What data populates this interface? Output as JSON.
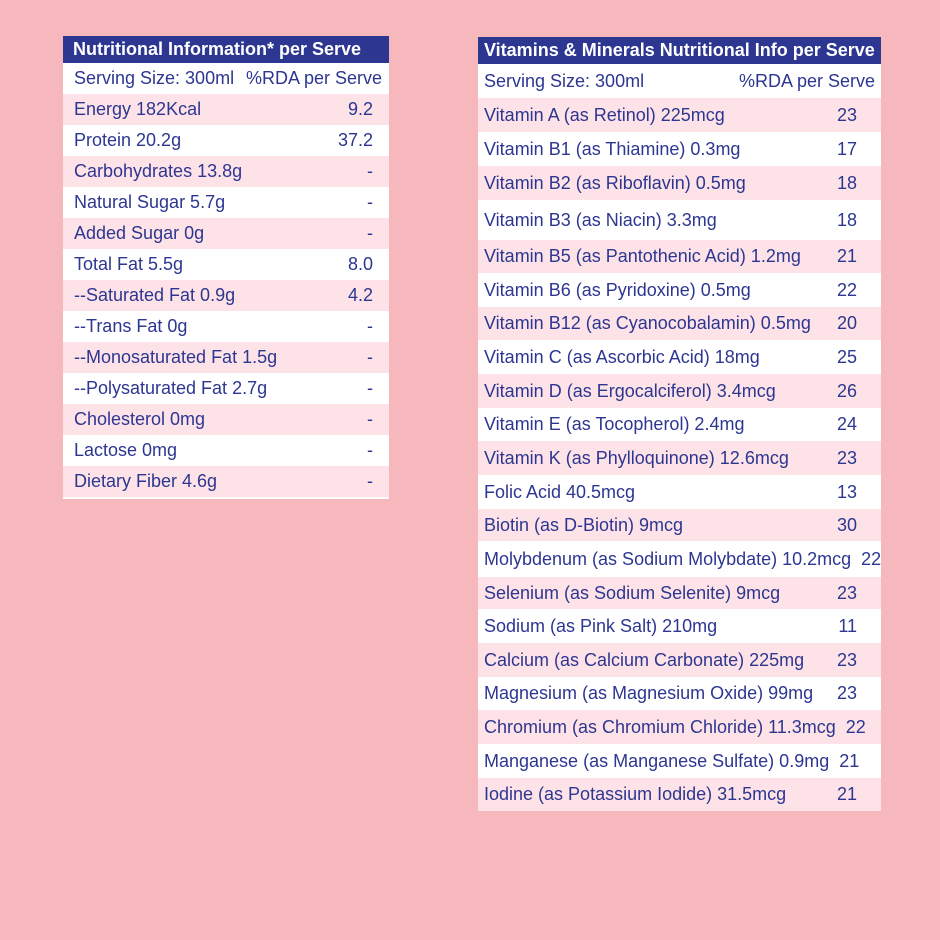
{
  "nutrition": {
    "title": "Nutritional Information* per Serve",
    "header_left": "Serving Size: 300ml",
    "header_right": "%RDA per Serve",
    "rows": [
      {
        "label": "Energy 182Kcal",
        "value": "9.2"
      },
      {
        "label": "Protein 20.2g",
        "value": "37.2"
      },
      {
        "label": "Carbohydrates 13.8g",
        "value": "-"
      },
      {
        "label": "Natural Sugar 5.7g",
        "value": "-"
      },
      {
        "label": "Added Sugar 0g",
        "value": "-"
      },
      {
        "label": "Total Fat 5.5g",
        "value": "8.0"
      },
      {
        "label": "--Saturated Fat 0.9g",
        "value": "4.2"
      },
      {
        "label": "--Trans Fat 0g",
        "value": "-"
      },
      {
        "label": "--Monosaturated Fat 1.5g",
        "value": "-"
      },
      {
        "label": "--Polysaturated Fat 2.7g",
        "value": "-"
      },
      {
        "label": "Cholesterol 0mg",
        "value": "-"
      },
      {
        "label": "Lactose 0mg",
        "value": "-"
      },
      {
        "label": "Dietary Fiber 4.6g",
        "value": "-"
      }
    ]
  },
  "vitamins": {
    "title": "Vitamins & Minerals Nutritional Info per Serve",
    "header_left": "Serving Size: 300ml",
    "header_right": "%RDA per Serve",
    "rows": [
      {
        "label": "Vitamin A (as Retinol) 225mcg",
        "value": "23"
      },
      {
        "label": "Vitamin B1 (as Thiamine) 0.3mg",
        "value": "17"
      },
      {
        "label": "Vitamin B2 (as Riboflavin) 0.5mg",
        "value": "18"
      },
      {
        "label": "Vitamin B3 (as Niacin) 3.3mg",
        "value": "18"
      },
      {
        "label": "Vitamin B5 (as Pantothenic Acid) 1.2mg",
        "value": "21"
      },
      {
        "label": "Vitamin B6 (as Pyridoxine) 0.5mg",
        "value": "22"
      },
      {
        "label": "Vitamin B12 (as Cyanocobalamin) 0.5mg",
        "value": "20"
      },
      {
        "label": "Vitamin C (as Ascorbic Acid) 18mg",
        "value": "25"
      },
      {
        "label": "Vitamin D (as Ergocalciferol) 3.4mcg",
        "value": "26"
      },
      {
        "label": "Vitamin E (as Tocopherol) 2.4mg",
        "value": "24"
      },
      {
        "label": "Vitamin K (as Phylloquinone) 12.6mcg",
        "value": "23"
      },
      {
        "label": "Folic Acid 40.5mcg",
        "value": "13"
      },
      {
        "label": "Biotin (as D-Biotin) 9mcg",
        "value": "30"
      },
      {
        "label": "Molybdenum (as Sodium Molybdate) 10.2mcg",
        "value": "22"
      },
      {
        "label": "Selenium (as Sodium Selenite) 9mcg",
        "value": "23"
      },
      {
        "label": "Sodium (as Pink Salt) 210mg",
        "value": "11"
      },
      {
        "label": "Calcium (as Calcium Carbonate) 225mg",
        "value": "23"
      },
      {
        "label": "Magnesium (as Magnesium Oxide) 99mg",
        "value": "23"
      },
      {
        "label": "Chromium (as Chromium Chloride) 11.3mcg",
        "value": "22"
      },
      {
        "label": "Manganese (as Manganese Sulfate) 0.9mg",
        "value": "21"
      },
      {
        "label": "Iodine (as Potassium Iodide) 31.5mcg",
        "value": "21"
      }
    ]
  }
}
